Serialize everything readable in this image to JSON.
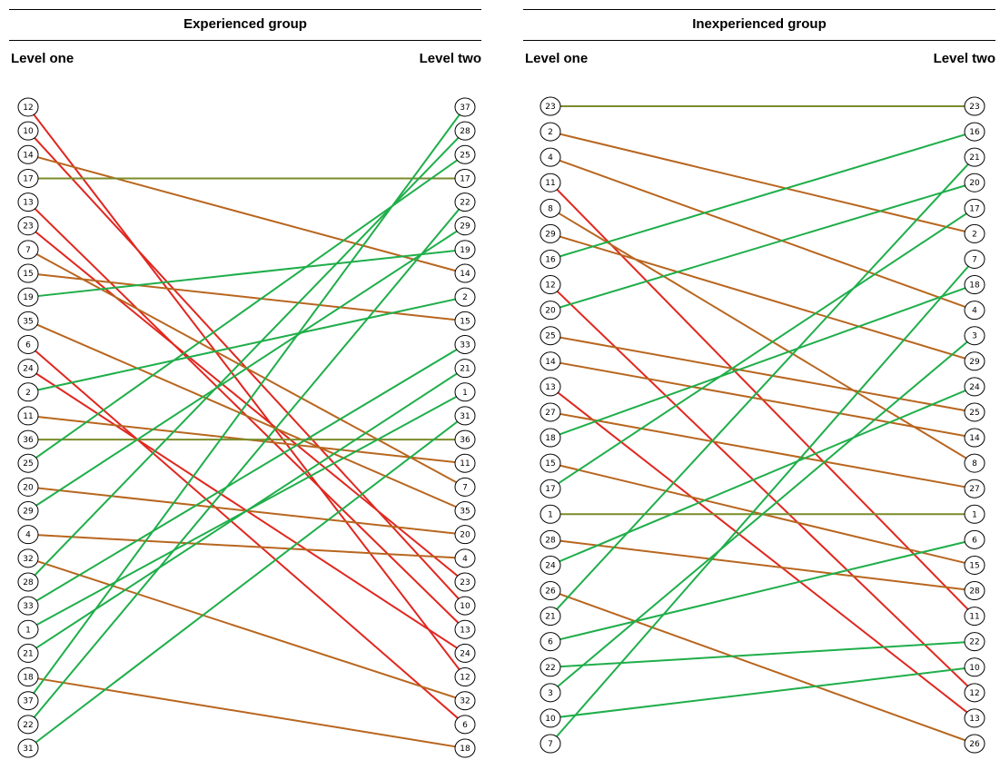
{
  "colors": {
    "stable": "#7a8c2a",
    "up": "#1fae4a",
    "down_small": "#b8661f",
    "down_large": "#e0271f"
  },
  "panels": [
    {
      "title": "Experienced group",
      "left_label": "Level one",
      "right_label": "Level two",
      "left_order": [
        "12",
        "10",
        "14",
        "17",
        "13",
        "23",
        "7",
        "15",
        "19",
        "35",
        "6",
        "24",
        "2",
        "11",
        "36",
        "25",
        "20",
        "29",
        "4",
        "32",
        "28",
        "33",
        "1",
        "21",
        "18",
        "37",
        "22",
        "31"
      ],
      "right_order": [
        "37",
        "28",
        "25",
        "17",
        "22",
        "29",
        "19",
        "14",
        "2",
        "15",
        "33",
        "21",
        "1",
        "31",
        "36",
        "11",
        "7",
        "35",
        "20",
        "4",
        "23",
        "10",
        "13",
        "24",
        "12",
        "32",
        "6",
        "18"
      ]
    },
    {
      "title": "Inexperienced group",
      "left_label": "Level one",
      "right_label": "Level two",
      "left_order": [
        "23",
        "2",
        "4",
        "11",
        "8",
        "29",
        "16",
        "12",
        "20",
        "25",
        "14",
        "13",
        "27",
        "18",
        "15",
        "17",
        "1",
        "28",
        "24",
        "26",
        "21",
        "6",
        "22",
        "3",
        "10",
        "7"
      ],
      "right_order": [
        "23",
        "16",
        "21",
        "20",
        "17",
        "2",
        "7",
        "18",
        "4",
        "3",
        "29",
        "24",
        "25",
        "14",
        "8",
        "27",
        "1",
        "6",
        "15",
        "28",
        "11",
        "22",
        "10",
        "12",
        "13",
        "26"
      ]
    }
  ]
}
